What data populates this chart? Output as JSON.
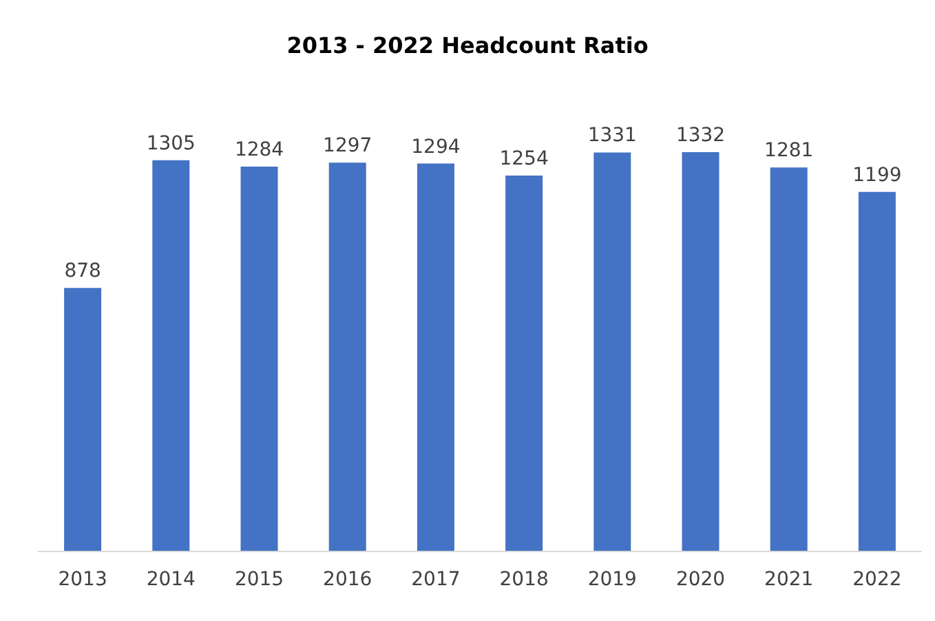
{
  "chart_data": {
    "type": "bar",
    "title": "2013 - 2022 Headcount Ratio",
    "categories": [
      "2013",
      "2014",
      "2015",
      "2016",
      "2017",
      "2018",
      "2019",
      "2020",
      "2021",
      "2022"
    ],
    "values": [
      878,
      1305,
      1284,
      1297,
      1294,
      1254,
      1331,
      1332,
      1281,
      1199
    ],
    "color": "#4472c4",
    "data_labels": true
  }
}
